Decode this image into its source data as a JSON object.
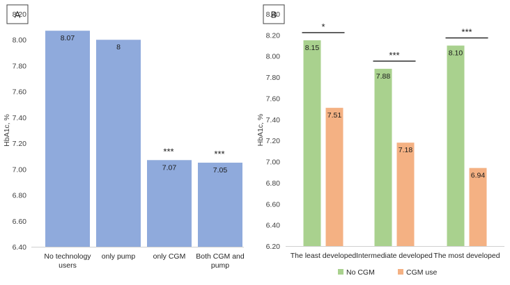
{
  "chart_data": [
    {
      "type": "bar",
      "panel_letter": "A",
      "ylabel": "HbA1c, %",
      "ylim": [
        6.4,
        8.2
      ],
      "yticks": [
        "6.40",
        "6.60",
        "6.80",
        "7.00",
        "7.20",
        "7.40",
        "7.60",
        "7.80",
        "8.00",
        "8.20"
      ],
      "categories": [
        [
          "No technology",
          "users"
        ],
        [
          "only pump"
        ],
        [
          "only CGM"
        ],
        [
          "Both CGM and",
          "pump"
        ]
      ],
      "values": [
        8.07,
        8.0,
        7.07,
        7.05
      ],
      "labels": [
        "8.07",
        "8",
        "7.07",
        "7.05"
      ],
      "significance": [
        "",
        "",
        "***",
        "***"
      ],
      "color": "#8faadc",
      "grid": false
    },
    {
      "type": "bar",
      "panel_letter": "B",
      "ylabel": "HbA1c, %",
      "ylim": [
        6.2,
        8.4
      ],
      "yticks": [
        "6.20",
        "6.40",
        "6.60",
        "6.80",
        "7.00",
        "7.20",
        "7.40",
        "7.60",
        "7.80",
        "8.00",
        "8.20",
        "8.40"
      ],
      "categories": [
        "The least developed",
        "Intermediate developed",
        "The most developed"
      ],
      "series": [
        {
          "name": "No CGM",
          "color": "#a9d18e",
          "values": [
            8.15,
            7.88,
            8.1
          ],
          "labels": [
            "8.15",
            "7.88",
            "8.10"
          ]
        },
        {
          "name": "CGM use",
          "color": "#f4b183",
          "values": [
            7.51,
            7.18,
            6.94
          ],
          "labels": [
            "7.51",
            "7.18",
            "6.94"
          ]
        }
      ],
      "significance": [
        "*",
        "***",
        "***"
      ],
      "legend": "bottom",
      "grid": false
    }
  ]
}
